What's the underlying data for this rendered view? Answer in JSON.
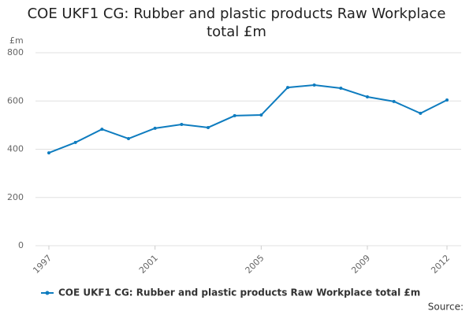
{
  "chart_data": {
    "type": "line",
    "title": "COE UKF1 CG: Rubber and plastic products Raw Workplace total £m",
    "y_unit": "£m",
    "source": "Source:",
    "x": [
      1997,
      1998,
      1999,
      2000,
      2001,
      2002,
      2003,
      2004,
      2005,
      2006,
      2007,
      2008,
      2009,
      2010,
      2011,
      2012
    ],
    "xlim": [
      1997,
      2012
    ],
    "xticks": [
      1997,
      2001,
      2005,
      2009,
      2012
    ],
    "ylim": [
      0,
      800
    ],
    "yticks": [
      0,
      200,
      400,
      600,
      800
    ],
    "grid": true,
    "legend": "bottom",
    "series": [
      {
        "name": "COE UKF1 CG: Rubber and plastic products Raw Workplace total £m",
        "color": "#0e7cbf",
        "values": [
          385,
          428,
          483,
          444,
          487,
          503,
          490,
          539,
          542,
          656,
          666,
          653,
          617,
          598,
          549,
          604
        ]
      }
    ]
  }
}
